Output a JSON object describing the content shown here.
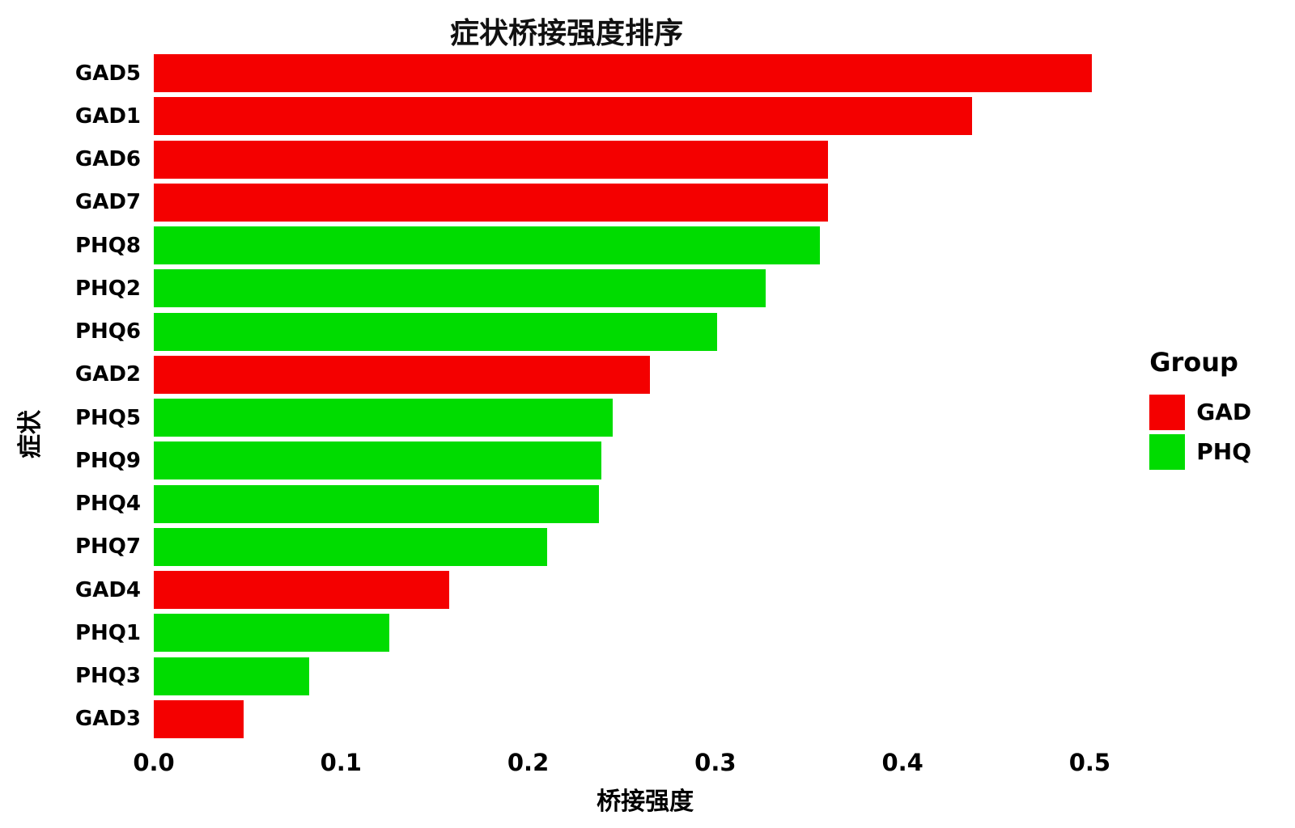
{
  "chart_data": {
    "type": "bar",
    "orientation": "horizontal",
    "title": "症状桥接强度排序",
    "xlabel": "桥接强度",
    "ylabel": "症状",
    "xlim": [
      0,
      0.525
    ],
    "grid": false,
    "x_ticks": [
      0.0,
      0.1,
      0.2,
      0.3,
      0.4,
      0.5
    ],
    "x_tick_labels": [
      "0.0",
      "0.1",
      "0.2",
      "0.3",
      "0.4",
      "0.5"
    ],
    "colors": {
      "GAD": "#F40000",
      "PHQ": "#00DC00"
    },
    "legend": {
      "title": "Group",
      "position": "right",
      "entries": [
        {
          "label": "GAD",
          "color": "#F40000"
        },
        {
          "label": "PHQ",
          "color": "#00DC00"
        }
      ]
    },
    "bars": [
      {
        "label": "GAD5",
        "value": 0.501,
        "group": "GAD"
      },
      {
        "label": "GAD1",
        "value": 0.437,
        "group": "GAD"
      },
      {
        "label": "GAD6",
        "value": 0.36,
        "group": "GAD"
      },
      {
        "label": "GAD7",
        "value": 0.36,
        "group": "GAD"
      },
      {
        "label": "PHQ8",
        "value": 0.356,
        "group": "PHQ"
      },
      {
        "label": "PHQ2",
        "value": 0.327,
        "group": "PHQ"
      },
      {
        "label": "PHQ6",
        "value": 0.301,
        "group": "PHQ"
      },
      {
        "label": "GAD2",
        "value": 0.265,
        "group": "GAD"
      },
      {
        "label": "PHQ5",
        "value": 0.245,
        "group": "PHQ"
      },
      {
        "label": "PHQ9",
        "value": 0.239,
        "group": "PHQ"
      },
      {
        "label": "PHQ4",
        "value": 0.238,
        "group": "PHQ"
      },
      {
        "label": "PHQ7",
        "value": 0.21,
        "group": "PHQ"
      },
      {
        "label": "GAD4",
        "value": 0.158,
        "group": "GAD"
      },
      {
        "label": "PHQ1",
        "value": 0.126,
        "group": "PHQ"
      },
      {
        "label": "PHQ3",
        "value": 0.083,
        "group": "PHQ"
      },
      {
        "label": "GAD3",
        "value": 0.048,
        "group": "GAD"
      }
    ]
  }
}
